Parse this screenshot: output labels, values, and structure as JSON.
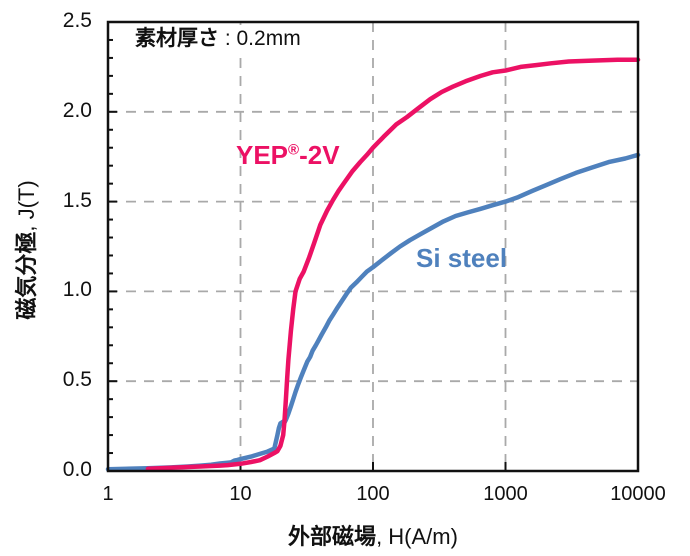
{
  "chart_data": {
    "type": "line",
    "x_scale": "log",
    "x_range": [
      1,
      10000
    ],
    "y_range": [
      0,
      2.5
    ],
    "x_ticks": [
      1,
      10,
      100,
      1000,
      10000
    ],
    "x_tick_labels": [
      "1",
      "10",
      "100",
      "1000",
      "10000"
    ],
    "y_ticks": [
      0,
      0.5,
      1.0,
      1.5,
      2.0,
      2.5
    ],
    "y_tick_labels": [
      "0.0",
      "0.5",
      "1.0",
      "1.5",
      "2.0",
      "2.5"
    ],
    "y_minor_step": 0.1,
    "grid": {
      "x_lines": [
        10,
        100,
        1000
      ],
      "y_lines": [
        0.5,
        1.0,
        1.5,
        2.0
      ],
      "color": "#a9a9a9",
      "on": true,
      "style": "dashed"
    },
    "xlabel": {
      "bold": "外部磁場",
      "rest": ", H(A/m)"
    },
    "ylabel": {
      "bold": "磁気分極",
      "rest": ", J(T)"
    },
    "annotation": {
      "bold": "素材厚さ",
      "rest": " : 0.2mm"
    },
    "legend_position": "inline-labels",
    "axis_color": "#111111",
    "series": [
      {
        "name": "Si steel",
        "color": "#4f81bd",
        "label": {
          "pre": "Si steel",
          "sup": "",
          "post": ""
        },
        "points": [
          [
            1,
            0.01
          ],
          [
            2,
            0.015
          ],
          [
            3,
            0.02
          ],
          [
            4,
            0.025
          ],
          [
            5,
            0.03
          ],
          [
            6,
            0.035
          ],
          [
            7,
            0.042
          ],
          [
            8,
            0.046
          ],
          [
            8.5,
            0.048
          ],
          [
            9,
            0.058
          ],
          [
            9.5,
            0.062
          ],
          [
            10,
            0.066
          ],
          [
            12,
            0.08
          ],
          [
            14,
            0.095
          ],
          [
            16,
            0.108
          ],
          [
            18,
            0.125
          ],
          [
            19,
            0.2
          ],
          [
            19.5,
            0.24
          ],
          [
            20,
            0.265
          ],
          [
            21,
            0.275
          ],
          [
            21.5,
            0.27
          ],
          [
            22,
            0.285
          ],
          [
            23,
            0.32
          ],
          [
            24,
            0.36
          ],
          [
            25,
            0.4
          ],
          [
            26,
            0.44
          ],
          [
            27,
            0.475
          ],
          [
            28.5,
            0.52
          ],
          [
            30,
            0.56
          ],
          [
            32,
            0.61
          ],
          [
            33.5,
            0.635
          ],
          [
            35,
            0.67
          ],
          [
            37,
            0.7
          ],
          [
            39,
            0.73
          ],
          [
            41,
            0.76
          ],
          [
            44,
            0.8
          ],
          [
            47,
            0.84
          ],
          [
            50,
            0.87
          ],
          [
            54,
            0.91
          ],
          [
            58,
            0.945
          ],
          [
            63,
            0.985
          ],
          [
            68,
            1.02
          ],
          [
            75,
            1.05
          ],
          [
            82,
            1.08
          ],
          [
            90,
            1.11
          ],
          [
            100,
            1.135
          ],
          [
            115,
            1.17
          ],
          [
            135,
            1.21
          ],
          [
            160,
            1.25
          ],
          [
            190,
            1.285
          ],
          [
            230,
            1.32
          ],
          [
            280,
            1.355
          ],
          [
            340,
            1.39
          ],
          [
            420,
            1.42
          ],
          [
            520,
            1.44
          ],
          [
            650,
            1.46
          ],
          [
            800,
            1.48
          ],
          [
            1000,
            1.5
          ],
          [
            1250,
            1.525
          ],
          [
            1600,
            1.56
          ],
          [
            2000,
            1.59
          ],
          [
            2600,
            1.625
          ],
          [
            3400,
            1.66
          ],
          [
            4500,
            1.69
          ],
          [
            6000,
            1.72
          ],
          [
            8000,
            1.74
          ],
          [
            10000,
            1.76
          ]
        ]
      },
      {
        "name": "YEP-2V",
        "color": "#ec1164",
        "label": {
          "pre": "YEP",
          "sup": "®",
          "post": "-2V"
        },
        "points": [
          [
            2,
            0.012
          ],
          [
            3,
            0.018
          ],
          [
            4,
            0.022
          ],
          [
            5,
            0.025
          ],
          [
            6,
            0.028
          ],
          [
            7,
            0.03
          ],
          [
            8,
            0.033
          ],
          [
            10,
            0.04
          ],
          [
            12,
            0.05
          ],
          [
            14,
            0.06
          ],
          [
            16,
            0.08
          ],
          [
            18,
            0.1
          ],
          [
            19,
            0.11
          ],
          [
            20,
            0.14
          ],
          [
            21,
            0.2
          ],
          [
            21.5,
            0.28
          ],
          [
            22,
            0.4
          ],
          [
            22.5,
            0.52
          ],
          [
            23,
            0.62
          ],
          [
            24,
            0.78
          ],
          [
            25,
            0.9
          ],
          [
            26,
            1.0
          ],
          [
            28,
            1.07
          ],
          [
            30,
            1.11
          ],
          [
            33,
            1.19
          ],
          [
            36,
            1.27
          ],
          [
            40,
            1.37
          ],
          [
            45,
            1.45
          ],
          [
            50,
            1.51
          ],
          [
            55,
            1.56
          ],
          [
            60,
            1.6
          ],
          [
            70,
            1.67
          ],
          [
            80,
            1.72
          ],
          [
            90,
            1.76
          ],
          [
            100,
            1.8
          ],
          [
            120,
            1.86
          ],
          [
            150,
            1.93
          ],
          [
            180,
            1.97
          ],
          [
            220,
            2.02
          ],
          [
            270,
            2.07
          ],
          [
            330,
            2.11
          ],
          [
            400,
            2.14
          ],
          [
            500,
            2.17
          ],
          [
            650,
            2.2
          ],
          [
            800,
            2.22
          ],
          [
            1000,
            2.23
          ],
          [
            1300,
            2.25
          ],
          [
            1700,
            2.26
          ],
          [
            2200,
            2.27
          ],
          [
            3000,
            2.28
          ],
          [
            4500,
            2.285
          ],
          [
            7000,
            2.29
          ],
          [
            10000,
            2.29
          ]
        ]
      }
    ]
  }
}
